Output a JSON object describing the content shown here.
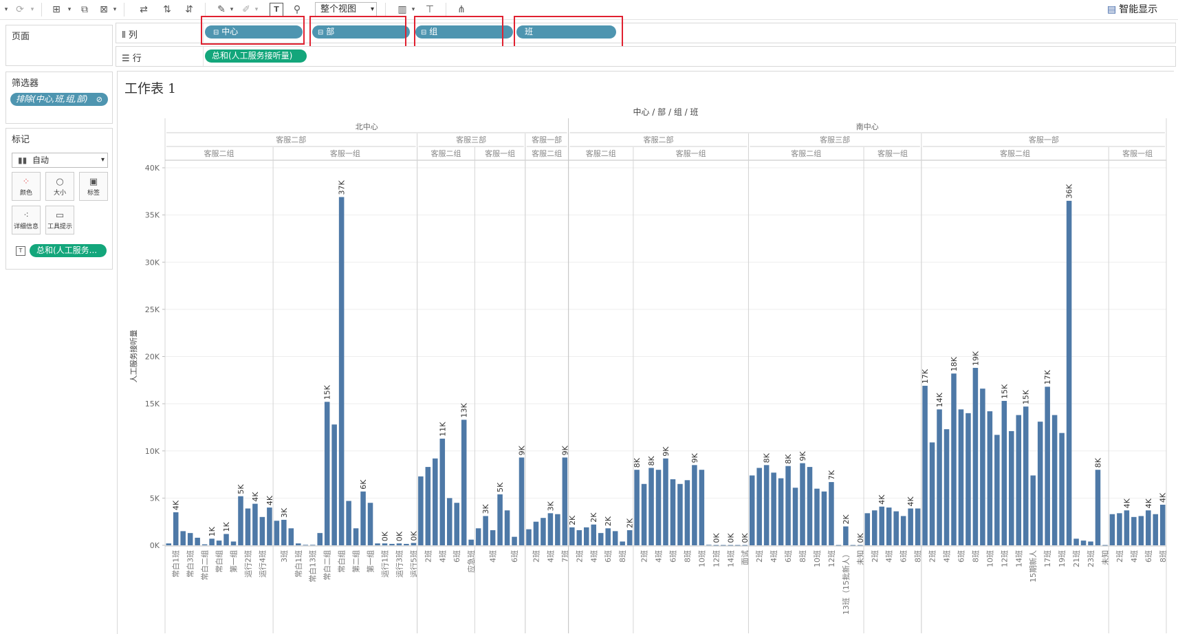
{
  "toolbar": {
    "view_label": "整个视图",
    "smart_label": "智能显示"
  },
  "shelves": {
    "pages_label": "页面",
    "columns_label": "列",
    "rows_label": "行",
    "columns": [
      "中心",
      "部",
      "组",
      "班"
    ],
    "rows": [
      "总和(人工服务接听量)"
    ]
  },
  "filters": {
    "title": "筛选器",
    "items": [
      "排除(中心,班,组,部)"
    ]
  },
  "marks": {
    "title": "标记",
    "type": "自动",
    "buttons": [
      "颜色",
      "大小",
      "标签",
      "详细信息",
      "工具提示"
    ],
    "field": "总和(人工服务..."
  },
  "sheet": {
    "title": "工作表 1"
  },
  "colors": {
    "bar": "#4e79a7",
    "pill_blue": "#4e95b0",
    "pill_green": "#13a67b",
    "highlight": "#e0202f"
  },
  "chart_data": {
    "type": "bar",
    "column_header_title": "中心 / 部 / 组 / 班",
    "ylabel": "人工服务接听量",
    "ylim": [
      0,
      40000
    ],
    "yticks": [
      "0K",
      "5K",
      "10K",
      "15K",
      "20K",
      "25K",
      "30K",
      "35K",
      "40K"
    ],
    "centers": [
      {
        "name": "北中心",
        "depts": [
          {
            "name": "客服二部",
            "groups": [
              {
                "name": "客服二组",
                "bars": [
                  {
                    "c": "",
                    "v": 200
                  },
                  {
                    "c": "常白1班",
                    "v": 3500,
                    "l": "4K"
                  },
                  {
                    "c": "",
                    "v": 1500
                  },
                  {
                    "c": "常白3班",
                    "v": 1300
                  },
                  {
                    "c": "",
                    "v": 800
                  },
                  {
                    "c": "常白二组",
                    "v": 100
                  },
                  {
                    "c": "",
                    "v": 700,
                    "l": "1K"
                  },
                  {
                    "c": "常白组",
                    "v": 500
                  },
                  {
                    "c": "",
                    "v": 1200,
                    "l": "1K"
                  },
                  {
                    "c": "第一组",
                    "v": 400
                  },
                  {
                    "c": "",
                    "v": 5200,
                    "l": "5K"
                  },
                  {
                    "c": "运行2班",
                    "v": 3900
                  },
                  {
                    "c": "",
                    "v": 4400,
                    "l": "4K"
                  },
                  {
                    "c": "运行4班",
                    "v": 3000
                  },
                  {
                    "c": "",
                    "v": 4000,
                    "l": "4K"
                  }
                ]
              },
              {
                "name": "客服一组",
                "bars": [
                  {
                    "c": "",
                    "v": 2600
                  },
                  {
                    "c": "3班",
                    "v": 2700,
                    "l": "3K"
                  },
                  {
                    "c": "",
                    "v": 1800
                  },
                  {
                    "c": "常白1班",
                    "v": 200
                  },
                  {
                    "c": "",
                    "v": 50
                  },
                  {
                    "c": "常白13班",
                    "v": 50
                  },
                  {
                    "c": "",
                    "v": 1300
                  },
                  {
                    "c": "常白二组",
                    "v": 15200,
                    "l": "15K"
                  },
                  {
                    "c": "",
                    "v": 12800
                  },
                  {
                    "c": "常白组",
                    "v": 36900,
                    "l": "37K"
                  },
                  {
                    "c": "",
                    "v": 4700
                  },
                  {
                    "c": "第二组",
                    "v": 1800
                  },
                  {
                    "c": "",
                    "v": 5700,
                    "l": "6K"
                  },
                  {
                    "c": "第一组",
                    "v": 4500
                  },
                  {
                    "c": "",
                    "v": 200
                  },
                  {
                    "c": "运行1班",
                    "v": 200,
                    "l": "0K"
                  },
                  {
                    "c": "",
                    "v": 150
                  },
                  {
                    "c": "运行3班",
                    "v": 200,
                    "l": "0K"
                  },
                  {
                    "c": "",
                    "v": 150
                  },
                  {
                    "c": "运行5班",
                    "v": 250,
                    "l": "0K"
                  }
                ]
              }
            ]
          },
          {
            "name": "客服三部",
            "groups": [
              {
                "name": "客服二组",
                "bars": [
                  {
                    "c": "",
                    "v": 7300
                  },
                  {
                    "c": "2班",
                    "v": 8300
                  },
                  {
                    "c": "",
                    "v": 9200
                  },
                  {
                    "c": "4班",
                    "v": 11300,
                    "l": "11K"
                  },
                  {
                    "c": "",
                    "v": 5000
                  },
                  {
                    "c": "6班",
                    "v": 4500
                  },
                  {
                    "c": "",
                    "v": 13300,
                    "l": "13K"
                  },
                  {
                    "c": "应急班",
                    "v": 600
                  }
                ]
              },
              {
                "name": "客服一组",
                "bars": [
                  {
                    "c": "",
                    "v": 1800
                  },
                  {
                    "c": "",
                    "v": 3100,
                    "l": "3K"
                  },
                  {
                    "c": "4班",
                    "v": 1600
                  },
                  {
                    "c": "",
                    "v": 5400,
                    "l": "5K"
                  },
                  {
                    "c": "",
                    "v": 3700
                  },
                  {
                    "c": "6班",
                    "v": 900
                  },
                  {
                    "c": "",
                    "v": 9300,
                    "l": "9K"
                  }
                ]
              }
            ]
          },
          {
            "name": "客服一部",
            "groups": [
              {
                "name": "客服二组",
                "bars": [
                  {
                    "c": "",
                    "v": 1700
                  },
                  {
                    "c": "2班",
                    "v": 2500
                  },
                  {
                    "c": "",
                    "v": 2900
                  },
                  {
                    "c": "4班",
                    "v": 3400,
                    "l": "3K"
                  },
                  {
                    "c": "",
                    "v": 3300
                  },
                  {
                    "c": "7班",
                    "v": 9300,
                    "l": "9K"
                  }
                ]
              }
            ]
          }
        ]
      },
      {
        "name": "南中心",
        "depts": [
          {
            "name": "客服二部",
            "groups": [
              {
                "name": "客服二组",
                "bars": [
                  {
                    "c": "",
                    "v": 1900,
                    "l": "2K"
                  },
                  {
                    "c": "2班",
                    "v": 1600
                  },
                  {
                    "c": "",
                    "v": 1900
                  },
                  {
                    "c": "4班",
                    "v": 2200,
                    "l": "2K"
                  },
                  {
                    "c": "",
                    "v": 1300
                  },
                  {
                    "c": "6班",
                    "v": 1800,
                    "l": "2K"
                  },
                  {
                    "c": "",
                    "v": 1500
                  },
                  {
                    "c": "8班",
                    "v": 400
                  },
                  {
                    "c": "",
                    "v": 1600,
                    "l": "2K"
                  }
                ]
              },
              {
                "name": "客服一组",
                "bars": [
                  {
                    "c": "",
                    "v": 8000,
                    "l": "8K"
                  },
                  {
                    "c": "2班",
                    "v": 6500
                  },
                  {
                    "c": "",
                    "v": 8200,
                    "l": "8K"
                  },
                  {
                    "c": "4班",
                    "v": 8000
                  },
                  {
                    "c": "",
                    "v": 9200,
                    "l": "9K"
                  },
                  {
                    "c": "6班",
                    "v": 7000
                  },
                  {
                    "c": "",
                    "v": 6500
                  },
                  {
                    "c": "8班",
                    "v": 6900
                  },
                  {
                    "c": "",
                    "v": 8500,
                    "l": "9K"
                  },
                  {
                    "c": "10班",
                    "v": 8000
                  },
                  {
                    "c": "",
                    "v": 50
                  },
                  {
                    "c": "12班",
                    "v": 30,
                    "l": "0K"
                  },
                  {
                    "c": "",
                    "v": 30
                  },
                  {
                    "c": "14班",
                    "v": 30,
                    "l": "0K"
                  },
                  {
                    "c": "",
                    "v": 30
                  },
                  {
                    "c": "面试",
                    "v": 30,
                    "l": "0K"
                  }
                ]
              }
            ]
          },
          {
            "name": "客服三部",
            "groups": [
              {
                "name": "客服二组",
                "bars": [
                  {
                    "c": "",
                    "v": 7400
                  },
                  {
                    "c": "2班",
                    "v": 8200
                  },
                  {
                    "c": "",
                    "v": 8500,
                    "l": "8K"
                  },
                  {
                    "c": "4班",
                    "v": 7700
                  },
                  {
                    "c": "",
                    "v": 7100
                  },
                  {
                    "c": "6班",
                    "v": 8400,
                    "l": "8K"
                  },
                  {
                    "c": "",
                    "v": 6100
                  },
                  {
                    "c": "8班",
                    "v": 8700,
                    "l": "9K"
                  },
                  {
                    "c": "",
                    "v": 8300
                  },
                  {
                    "c": "10班",
                    "v": 6000
                  },
                  {
                    "c": "",
                    "v": 5700
                  },
                  {
                    "c": "12班",
                    "v": 6700,
                    "l": "7K"
                  },
                  {
                    "c": "",
                    "v": 30
                  },
                  {
                    "c": "13班（15批新人）",
                    "v": 2000,
                    "l": "2K"
                  },
                  {
                    "c": "",
                    "v": 30
                  },
                  {
                    "c": "未知",
                    "v": 30,
                    "l": "0K"
                  }
                ]
              },
              {
                "name": "客服一组",
                "bars": [
                  {
                    "c": "",
                    "v": 3400
                  },
                  {
                    "c": "2班",
                    "v": 3700
                  },
                  {
                    "c": "",
                    "v": 4100,
                    "l": "4K"
                  },
                  {
                    "c": "4班",
                    "v": 4000
                  },
                  {
                    "c": "",
                    "v": 3600
                  },
                  {
                    "c": "6班",
                    "v": 3100
                  },
                  {
                    "c": "",
                    "v": 3900,
                    "l": "4K"
                  },
                  {
                    "c": "8班",
                    "v": 3900
                  }
                ]
              }
            ]
          },
          {
            "name": "客服一部",
            "groups": [
              {
                "name": "客服二组",
                "bars": [
                  {
                    "c": "",
                    "v": 16900,
                    "l": "17K"
                  },
                  {
                    "c": "2班",
                    "v": 10900
                  },
                  {
                    "c": "",
                    "v": 14400,
                    "l": "14K"
                  },
                  {
                    "c": "4班",
                    "v": 12300
                  },
                  {
                    "c": "",
                    "v": 18200,
                    "l": "18K"
                  },
                  {
                    "c": "6班",
                    "v": 14400
                  },
                  {
                    "c": "",
                    "v": 14000
                  },
                  {
                    "c": "8班",
                    "v": 18800,
                    "l": "19K"
                  },
                  {
                    "c": "",
                    "v": 16600
                  },
                  {
                    "c": "10班",
                    "v": 14200
                  },
                  {
                    "c": "",
                    "v": 11700
                  },
                  {
                    "c": "12班",
                    "v": 15300,
                    "l": "15K"
                  },
                  {
                    "c": "",
                    "v": 12100
                  },
                  {
                    "c": "14班",
                    "v": 13800
                  },
                  {
                    "c": "",
                    "v": 14700,
                    "l": "15K"
                  },
                  {
                    "c": "15期新人",
                    "v": 7400
                  },
                  {
                    "c": "",
                    "v": 13100
                  },
                  {
                    "c": "17班",
                    "v": 16800,
                    "l": "17K"
                  },
                  {
                    "c": "",
                    "v": 13800
                  },
                  {
                    "c": "19班",
                    "v": 11900
                  },
                  {
                    "c": "",
                    "v": 36500,
                    "l": "36K"
                  },
                  {
                    "c": "21班",
                    "v": 700
                  },
                  {
                    "c": "",
                    "v": 500
                  },
                  {
                    "c": "23班",
                    "v": 400
                  },
                  {
                    "c": "",
                    "v": 8000,
                    "l": "8K"
                  },
                  {
                    "c": "未知",
                    "v": 30
                  }
                ]
              },
              {
                "name": "客服一组",
                "bars": [
                  {
                    "c": "",
                    "v": 3300
                  },
                  {
                    "c": "2班",
                    "v": 3400
                  },
                  {
                    "c": "",
                    "v": 3700,
                    "l": "4K"
                  },
                  {
                    "c": "4班",
                    "v": 3000
                  },
                  {
                    "c": "",
                    "v": 3100
                  },
                  {
                    "c": "6班",
                    "v": 3700,
                    "l": "4K"
                  },
                  {
                    "c": "",
                    "v": 3300
                  },
                  {
                    "c": "8班",
                    "v": 4300,
                    "l": "4K"
                  }
                ]
              }
            ]
          }
        ]
      }
    ]
  }
}
